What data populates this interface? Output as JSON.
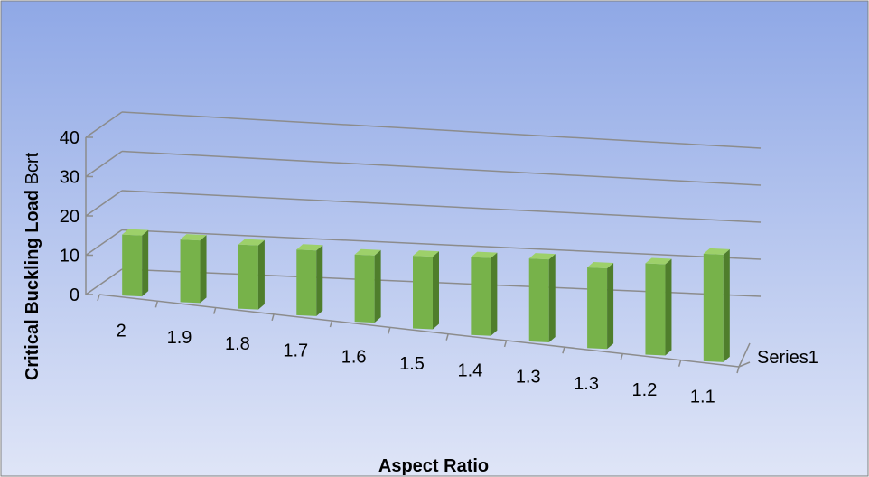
{
  "chart_data": {
    "type": "bar",
    "style": "3d-column",
    "title": "",
    "xlabel": "Aspect Ratio",
    "ylabel_bold": "Critical Buckling Load",
    "ylabel_rest": " Bcrt",
    "categories": [
      "2",
      "1.9",
      "1.8",
      "1.7",
      "1.6",
      "1.5",
      "1.4",
      "1.3",
      "1.3",
      "1.2",
      "1.1"
    ],
    "series": [
      {
        "name": "Series1",
        "values": [
          15.5,
          16,
          16.5,
          17,
          17.5,
          19,
          20.5,
          22,
          21.5,
          24.5,
          29
        ]
      }
    ],
    "ylim": [
      0,
      40
    ],
    "yticks": [
      "0",
      "10",
      "20",
      "30",
      "40"
    ],
    "grid": true,
    "colors": {
      "bar_front": "#77b24a",
      "bar_side": "#4f7e2c",
      "bar_top": "#9dd06a",
      "bg_top": "#8fa8e6",
      "bg_bottom": "#dfe5f7",
      "grid": "#8c8c8c"
    }
  }
}
